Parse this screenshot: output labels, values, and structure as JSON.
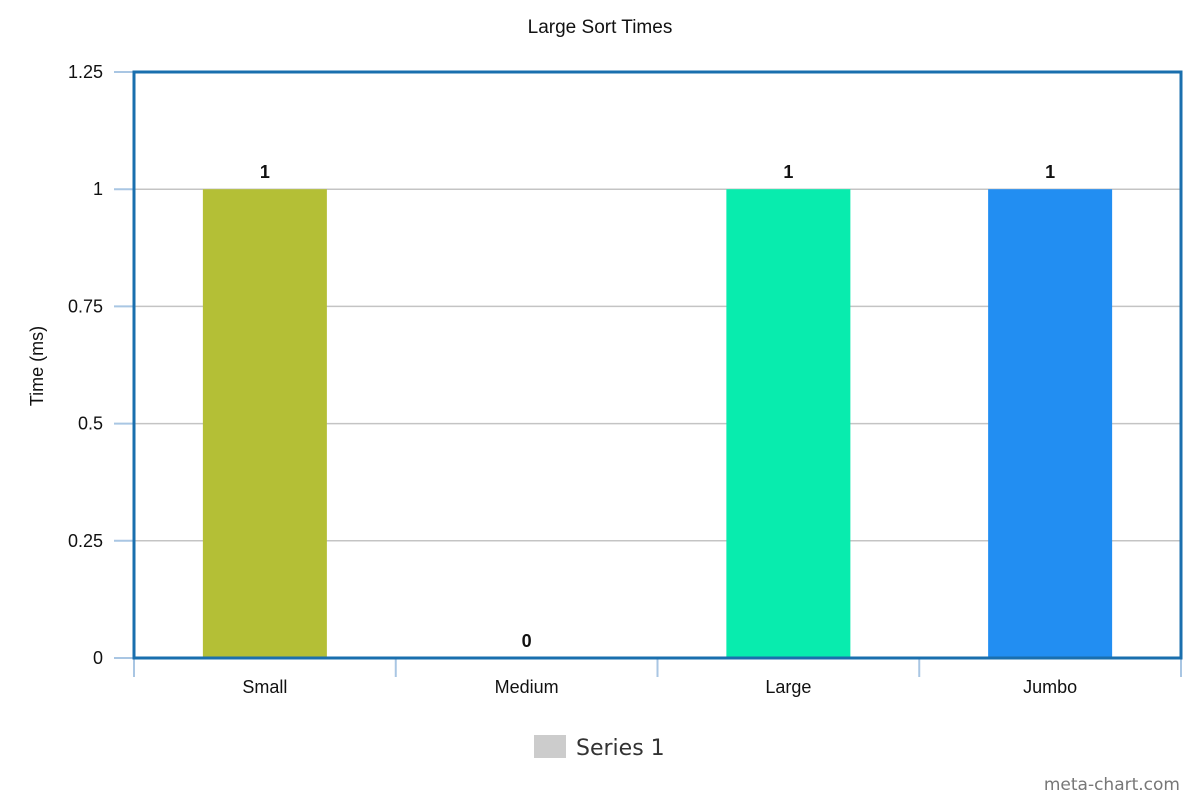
{
  "chart_data": {
    "type": "bar",
    "title": "Large Sort Times",
    "xlabel": "",
    "ylabel": "Time (ms)",
    "categories": [
      "Small",
      "Medium",
      "Large",
      "Jumbo"
    ],
    "series": [
      {
        "name": "Series 1",
        "values": [
          1,
          0,
          1,
          1
        ]
      }
    ],
    "bar_colors": [
      "#b4bf36",
      "#cccccc",
      "#08ecae",
      "#228ef2"
    ],
    "data_labels": [
      "1",
      "0",
      "1",
      "1"
    ],
    "ylim": [
      0,
      1.25
    ],
    "yticks": [
      0,
      0.25,
      0.5,
      0.75,
      1,
      1.25
    ],
    "ytick_labels": [
      "0",
      "0.25",
      "0.5",
      "0.75",
      "1",
      "1.25"
    ],
    "grid": true,
    "legend_position": "bottom",
    "legend_color": "#cccccc",
    "frame_color": "#1a6fae"
  },
  "watermark": "meta-chart.com"
}
